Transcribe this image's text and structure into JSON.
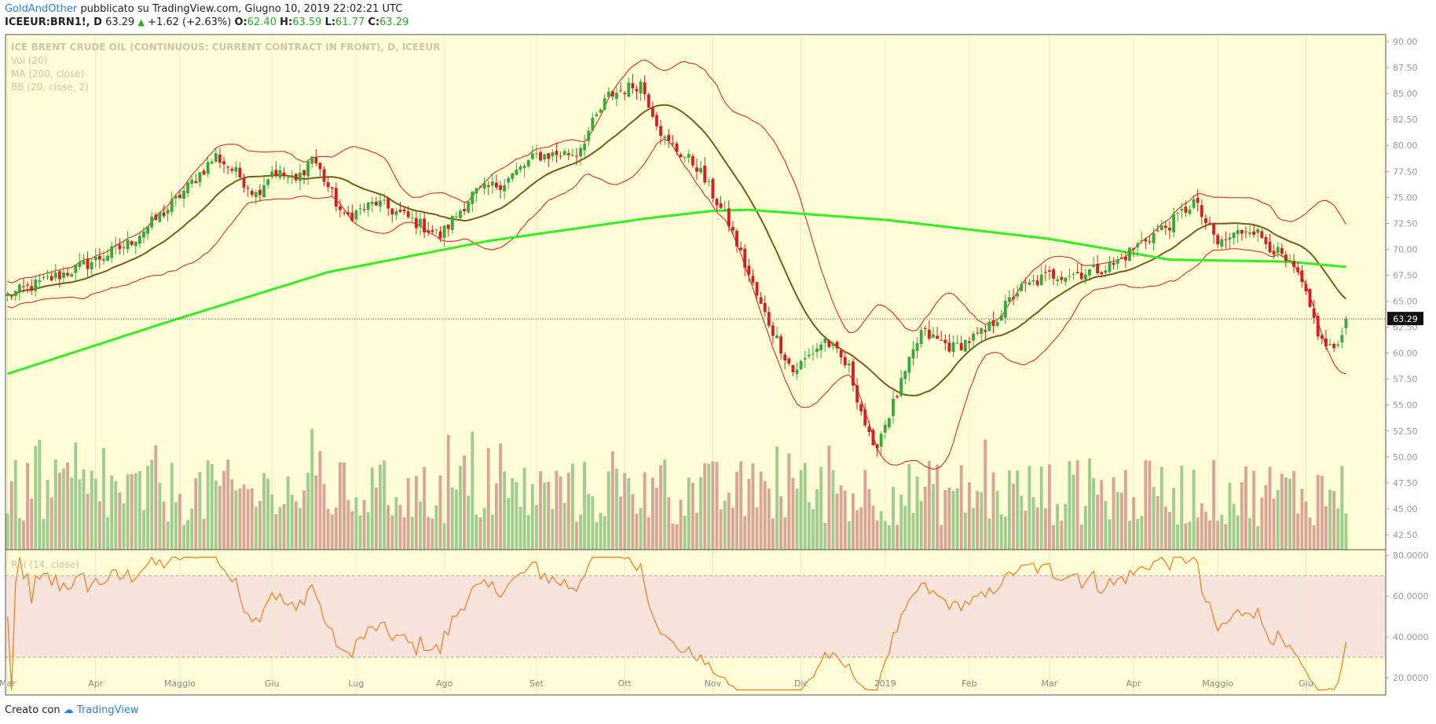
{
  "header": {
    "author": "GoldAndOther",
    "published": "pubblicato su TradingView.com, Giugno 10, 2019 22:02:21 UTC",
    "symbol": "ICEEUR:BRN1!, D",
    "last": "63.29",
    "change": "+1.62 (+2.63%)",
    "o_label": "O:",
    "o_val": "62.40",
    "h_label": "H:",
    "h_val": "63.59",
    "l_label": "L:",
    "l_val": "61.77",
    "c_label": "C:",
    "c_val": "63.29"
  },
  "indicators": {
    "title": "ICE BRENT CRUDE OIL (CONTINUOUS: CURRENT CONTRACT IN FRONT), D, ICEEUR",
    "vol": "Vol (20)",
    "ma": "MA (200, close)",
    "bb": "BB (20, close, 2)",
    "rsi": "RSI (14, close)"
  },
  "footer": {
    "made_with": "Creato con",
    "brand": "TradingView"
  },
  "colors": {
    "background": "#fffdd6",
    "up": "#3aa83a",
    "down": "#d42020",
    "ma200": "#33ee22",
    "bb_basis": "#7a5a1a",
    "bb_band": "#e01515",
    "rsi_line": "#f07a1a",
    "rsi_band": "#f7e4dc"
  },
  "chart_data": [
    {
      "type": "candlestick",
      "title": "ICE BRENT CRUDE OIL (CONTINUOUS: CURRENT CONTRACT IN FRONT), D, ICEEUR",
      "x": [
        "Mar",
        "Apr",
        "Maggio",
        "Giu",
        "Lug",
        "Ago",
        "Set",
        "Ott",
        "Nov",
        "Dic",
        "2019",
        "Feb",
        "Mar",
        "Apr",
        "Maggio",
        "Giu"
      ],
      "ylim": [
        40.0,
        90.0
      ],
      "yticks": [
        "42.50",
        "45.00",
        "47.50",
        "50.00",
        "52.50",
        "55.00",
        "57.50",
        "60.00",
        "62.50",
        "65.00",
        "67.50",
        "70.00",
        "72.50",
        "75.00",
        "77.50",
        "80.00",
        "82.50",
        "85.00",
        "87.50",
        "90.00"
      ],
      "last_price": "63.29",
      "close_anchors": [
        [
          0,
          65.5
        ],
        [
          20,
          68.6
        ],
        [
          30,
          70.5
        ],
        [
          40,
          73.9
        ],
        [
          52,
          79.0
        ],
        [
          58,
          77.0
        ],
        [
          62,
          75.3
        ],
        [
          66,
          77.6
        ],
        [
          72,
          76.5
        ],
        [
          76,
          79.0
        ],
        [
          84,
          73.0
        ],
        [
          92,
          74.5
        ],
        [
          100,
          73.0
        ],
        [
          108,
          71.3
        ],
        [
          116,
          75.3
        ],
        [
          124,
          76.5
        ],
        [
          132,
          79.0
        ],
        [
          142,
          79.3
        ],
        [
          150,
          84.8
        ],
        [
          158,
          86.0
        ],
        [
          164,
          80.5
        ],
        [
          172,
          78.0
        ],
        [
          180,
          72.5
        ],
        [
          188,
          64.5
        ],
        [
          196,
          58.2
        ],
        [
          204,
          61.3
        ],
        [
          210,
          58.5
        ],
        [
          216,
          50.5
        ],
        [
          222,
          56.0
        ],
        [
          228,
          62.0
        ],
        [
          236,
          60.5
        ],
        [
          244,
          62.0
        ],
        [
          252,
          66.0
        ],
        [
          260,
          67.5
        ],
        [
          268,
          67.7
        ],
        [
          276,
          68.5
        ],
        [
          284,
          71.0
        ],
        [
          290,
          72.4
        ],
        [
          296,
          74.6
        ],
        [
          302,
          70.5
        ],
        [
          310,
          72.2
        ],
        [
          316,
          70.0
        ],
        [
          322,
          67.5
        ],
        [
          328,
          61.0
        ],
        [
          332,
          60.3
        ],
        [
          334,
          63.29
        ]
      ],
      "ma200_anchors": [
        [
          0,
          58.0
        ],
        [
          40,
          63.0
        ],
        [
          80,
          67.8
        ],
        [
          120,
          70.8
        ],
        [
          160,
          73.0
        ],
        [
          176,
          73.7
        ],
        [
          185,
          73.8
        ],
        [
          220,
          72.8
        ],
        [
          260,
          71.0
        ],
        [
          290,
          69.0
        ],
        [
          320,
          68.8
        ],
        [
          334,
          68.3
        ]
      ],
      "bb": {
        "period": 20,
        "stdev": 2
      },
      "volume": {
        "period": 20
      },
      "rsi": {
        "period": 14,
        "ylim": [
          10,
          80
        ],
        "yticks": [
          "20.0000",
          "40.0000",
          "60.0000",
          "80.0000"
        ],
        "upper": 70,
        "lower": 30
      }
    }
  ]
}
